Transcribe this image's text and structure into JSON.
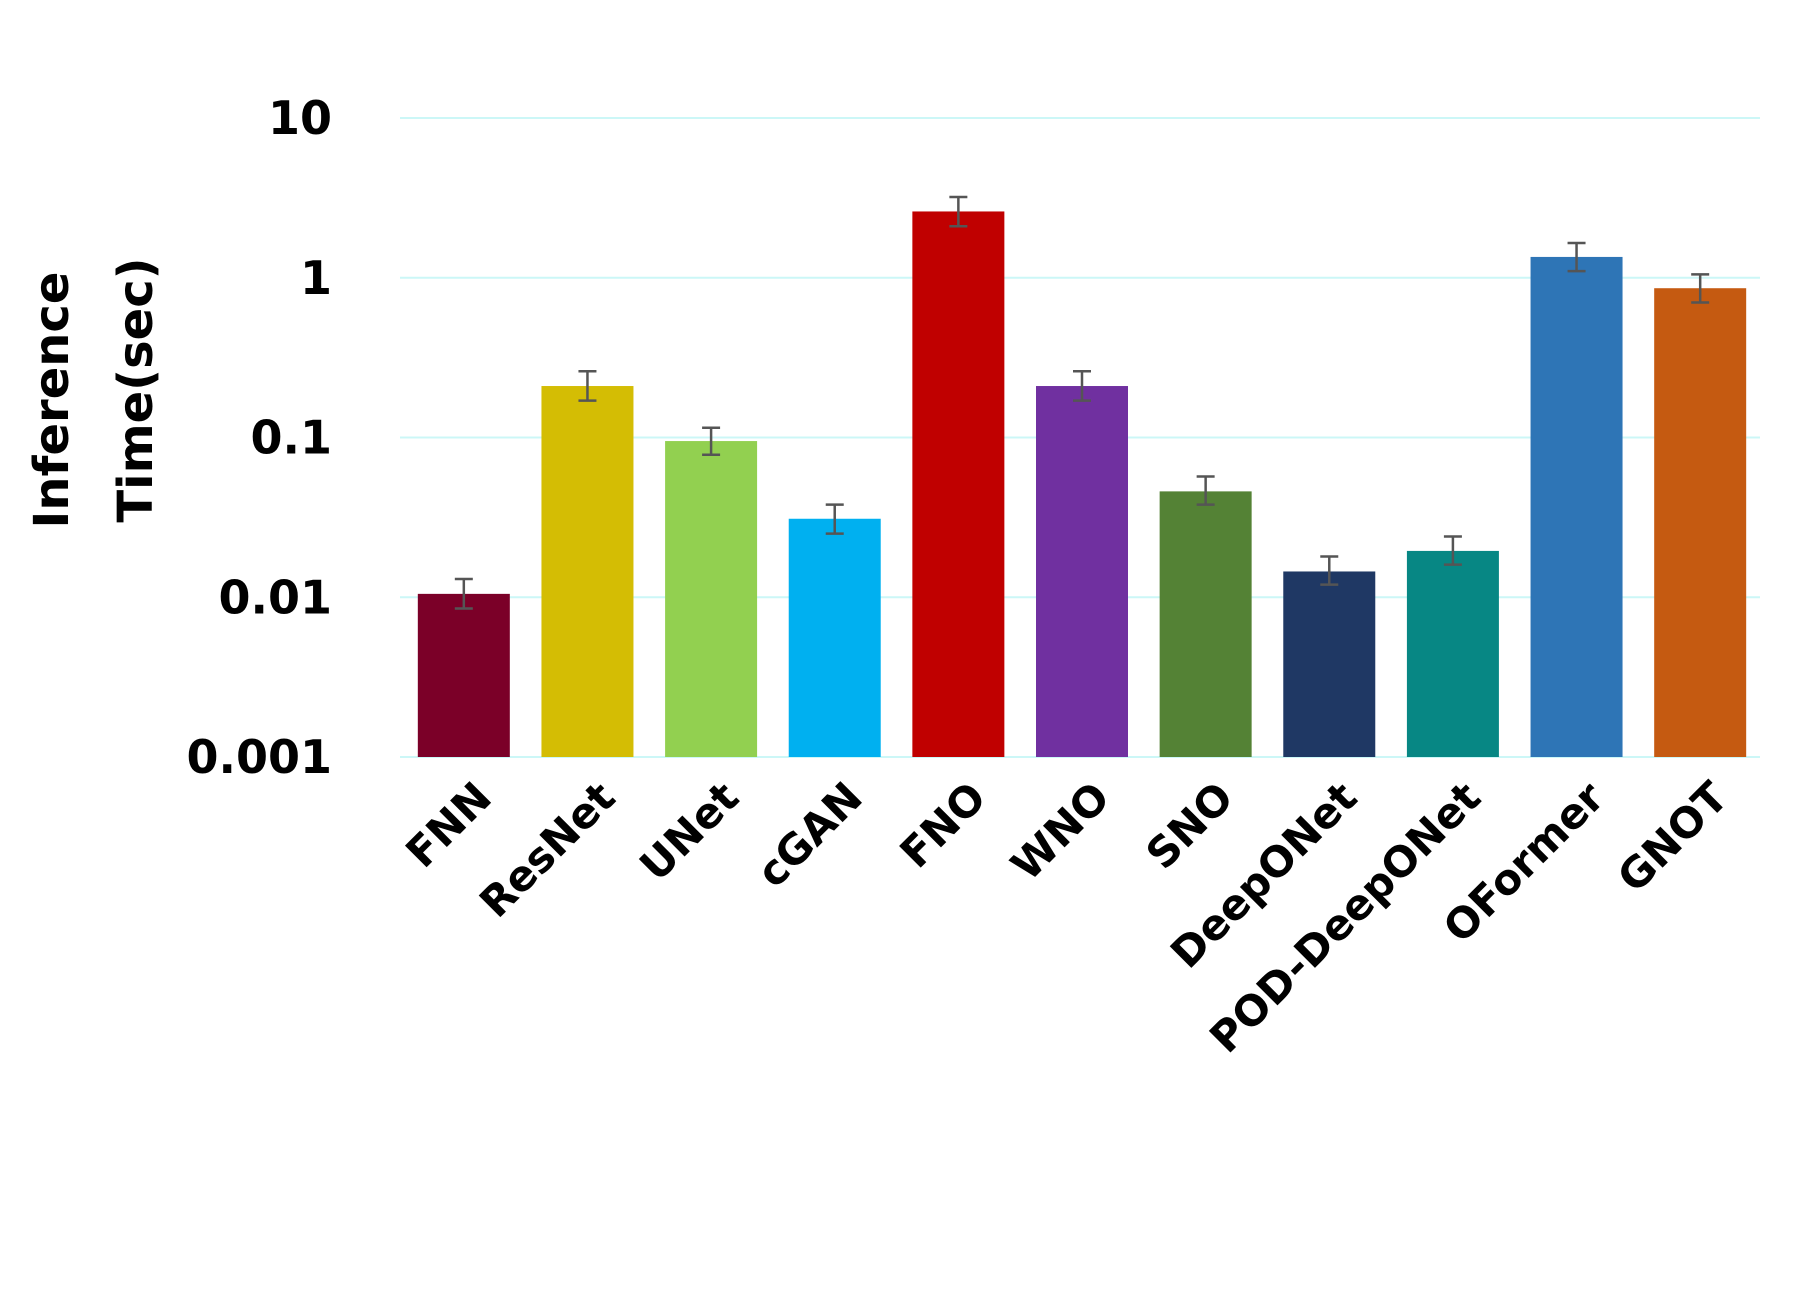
{
  "chart_data": {
    "type": "bar",
    "title": "",
    "xlabel": "",
    "ylabel": [
      "Inference",
      "Time(sec)"
    ],
    "yscale": "log",
    "ylim": [
      0.001,
      10
    ],
    "yticks": [
      "0.001",
      "0.01",
      "0.1",
      "1",
      "10"
    ],
    "grid": true,
    "categories": [
      "FNN",
      "ResNet",
      "UNet",
      "cGAN",
      "FNO",
      "WNO",
      "SNO",
      "DeepONet",
      "POD-DeepONet",
      "OFormer",
      "GNOT"
    ],
    "values": [
      0.0105,
      0.21,
      0.095,
      0.031,
      2.6,
      0.21,
      0.046,
      0.0145,
      0.0195,
      1.35,
      0.86
    ],
    "error_low": [
      0.0085,
      0.17,
      0.078,
      0.025,
      2.1,
      0.17,
      0.038,
      0.012,
      0.016,
      1.1,
      0.7
    ],
    "error_high": [
      0.013,
      0.26,
      0.115,
      0.038,
      3.2,
      0.26,
      0.057,
      0.018,
      0.024,
      1.65,
      1.05
    ],
    "colors": [
      "#7b0028",
      "#d4bd04",
      "#92d050",
      "#00b0f0",
      "#c00000",
      "#7030a0",
      "#548235",
      "#1f3864",
      "#078784",
      "#2e75b6",
      "#c55a11"
    ]
  }
}
